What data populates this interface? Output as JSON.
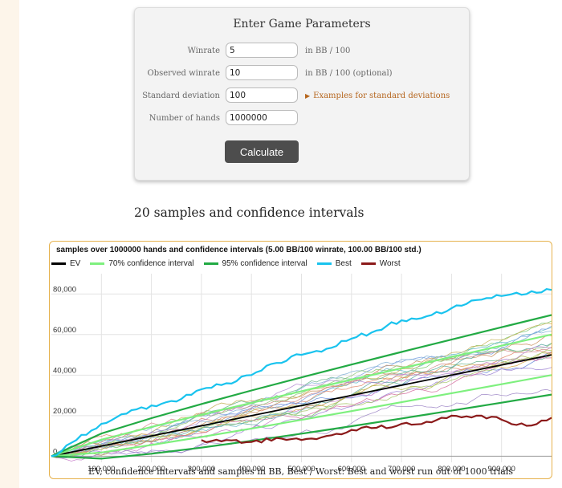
{
  "form": {
    "title": "Enter Game Parameters",
    "fields": [
      {
        "label": "Winrate",
        "value": "5",
        "unit": "in BB / 100"
      },
      {
        "label": "Observed winrate",
        "value": "10",
        "unit": "in BB / 100 (optional)"
      },
      {
        "label": "Standard deviation",
        "value": "100"
      },
      {
        "label": "Number of hands",
        "value": "1000000"
      }
    ],
    "examples_link": "Examples for standard deviations",
    "calculate_label": "Calculate"
  },
  "section_heading": "20 samples and confidence intervals",
  "chart_data": {
    "type": "line",
    "title": "samples over 1000000 hands and confidence intervals (5.00 BB/100 winrate, 100.00 BB/100 std.)",
    "caption": "EV, confidence intervals and samples in BB, Best / Worst: Best and worst run out of 1000 trials",
    "xlim": [
      0,
      1000000
    ],
    "ylim": [
      -3000,
      90000
    ],
    "x_ticks": [
      100000,
      200000,
      300000,
      400000,
      500000,
      600000,
      700000,
      800000,
      900000
    ],
    "x_tick_labels": [
      "100,000",
      "200,000",
      "300,000",
      "400,000",
      "500,000",
      "600,000",
      "700,000",
      "800,000",
      "900,000"
    ],
    "y_ticks": [
      0,
      20000,
      40000,
      60000,
      80000
    ],
    "y_tick_labels": [
      "0",
      "20,000",
      "40,000",
      "60,000",
      "80,000"
    ],
    "grid": true,
    "legend_position": "top-left",
    "legend": [
      {
        "name": "EV",
        "color": "#000000"
      },
      {
        "name": "70% confidence interval",
        "color": "#7ef07e"
      },
      {
        "name": "95% confidence interval",
        "color": "#22aa44"
      },
      {
        "name": "Best",
        "color": "#19c3ee"
      },
      {
        "name": "Worst",
        "color": "#8b1a1a"
      }
    ],
    "series": [
      {
        "name": "EV",
        "color": "#000000",
        "x": [
          0,
          1000000
        ],
        "y": [
          0,
          50000
        ]
      },
      {
        "name": "70% confidence interval",
        "color": "#7ef07e",
        "role": "upper",
        "x": [
          0,
          100000,
          200000,
          300000,
          400000,
          500000,
          600000,
          700000,
          800000,
          900000,
          1000000
        ],
        "y": [
          0,
          8162,
          14462,
          20477,
          26325,
          32072,
          37745,
          43366,
          48943,
          54487,
          60000
        ]
      },
      {
        "name": "70% confidence interval",
        "color": "#7ef07e",
        "role": "lower",
        "x": [
          0,
          100000,
          200000,
          300000,
          400000,
          500000,
          600000,
          700000,
          800000,
          900000,
          1000000
        ],
        "y": [
          0,
          1838,
          5538,
          9523,
          13675,
          17928,
          22255,
          26634,
          31057,
          35513,
          40000
        ]
      },
      {
        "name": "95% confidence interval",
        "color": "#22aa44",
        "role": "upper",
        "x": [
          0,
          100000,
          200000,
          300000,
          400000,
          500000,
          600000,
          700000,
          800000,
          900000,
          1000000
        ],
        "y": [
          0,
          11198,
          18765,
          25740,
          32400,
          38860,
          45188,
          51398,
          57528,
          63594,
          69600
        ]
      },
      {
        "name": "95% confidence interval",
        "color": "#22aa44",
        "role": "lower",
        "x": [
          0,
          100000,
          200000,
          300000,
          400000,
          500000,
          600000,
          700000,
          800000,
          900000,
          1000000
        ],
        "y": [
          0,
          -1198,
          1235,
          4260,
          7600,
          11140,
          14812,
          18602,
          22472,
          26406,
          30400
        ]
      },
      {
        "name": "Best",
        "color": "#19c3ee",
        "x": [
          0,
          50000,
          100000,
          150000,
          200000,
          250000,
          300000,
          350000,
          400000,
          450000,
          500000,
          550000,
          600000,
          650000,
          700000,
          750000,
          800000,
          850000,
          900000,
          950000,
          1000000
        ],
        "y": [
          0,
          8000,
          16000,
          21000,
          25000,
          27000,
          33000,
          36000,
          40000,
          46000,
          50000,
          53000,
          58000,
          62000,
          67000,
          69000,
          73000,
          77000,
          79000,
          80000,
          82000
        ]
      },
      {
        "name": "Worst",
        "color": "#8b1a1a",
        "x": [
          300000,
          350000,
          400000,
          450000,
          500000,
          550000,
          600000,
          650000,
          700000,
          750000,
          800000,
          850000,
          900000,
          950000,
          1000000
        ],
        "y": [
          8000,
          8000,
          7000,
          9000,
          8000,
          10000,
          13000,
          14000,
          16000,
          17000,
          20000,
          20000,
          18000,
          15000,
          19000
        ]
      }
    ]
  }
}
